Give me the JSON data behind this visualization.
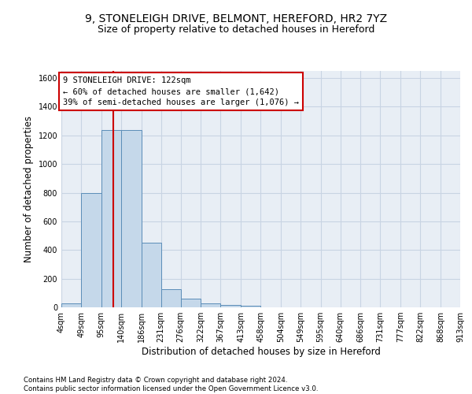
{
  "title_line1": "9, STONELEIGH DRIVE, BELMONT, HEREFORD, HR2 7YZ",
  "title_line2": "Size of property relative to detached houses in Hereford",
  "xlabel": "Distribution of detached houses by size in Hereford",
  "ylabel": "Number of detached properties",
  "bar_values": [
    25,
    800,
    1240,
    1240,
    450,
    125,
    60,
    25,
    15,
    10,
    0,
    0,
    0,
    0,
    0,
    0,
    0,
    0,
    0,
    0
  ],
  "bin_edges": [
    4,
    49,
    95,
    140,
    186,
    231,
    276,
    322,
    367,
    413,
    458,
    504,
    549,
    595,
    640,
    686,
    731,
    777,
    822,
    868,
    913
  ],
  "tick_labels": [
    "4sqm",
    "49sqm",
    "95sqm",
    "140sqm",
    "186sqm",
    "231sqm",
    "276sqm",
    "322sqm",
    "367sqm",
    "413sqm",
    "458sqm",
    "504sqm",
    "549sqm",
    "595sqm",
    "640sqm",
    "686sqm",
    "731sqm",
    "777sqm",
    "822sqm",
    "868sqm",
    "913sqm"
  ],
  "bar_color": "#c5d8ea",
  "bar_edgecolor": "#5b8db8",
  "grid_color": "#c8d4e3",
  "bg_color": "#e8eef5",
  "property_line_x": 122,
  "property_line_color": "#cc0000",
  "annotation_text": "9 STONELEIGH DRIVE: 122sqm\n← 60% of detached houses are smaller (1,642)\n39% of semi-detached houses are larger (1,076) →",
  "annotation_box_color": "#cc0000",
  "ylim": [
    0,
    1650
  ],
  "yticks": [
    0,
    200,
    400,
    600,
    800,
    1000,
    1200,
    1400,
    1600
  ],
  "footer_text": "Contains HM Land Registry data © Crown copyright and database right 2024.\nContains public sector information licensed under the Open Government Licence v3.0.",
  "title_fontsize": 10,
  "subtitle_fontsize": 9,
  "label_fontsize": 8.5,
  "tick_fontsize": 7,
  "annotation_fontsize": 7.5
}
